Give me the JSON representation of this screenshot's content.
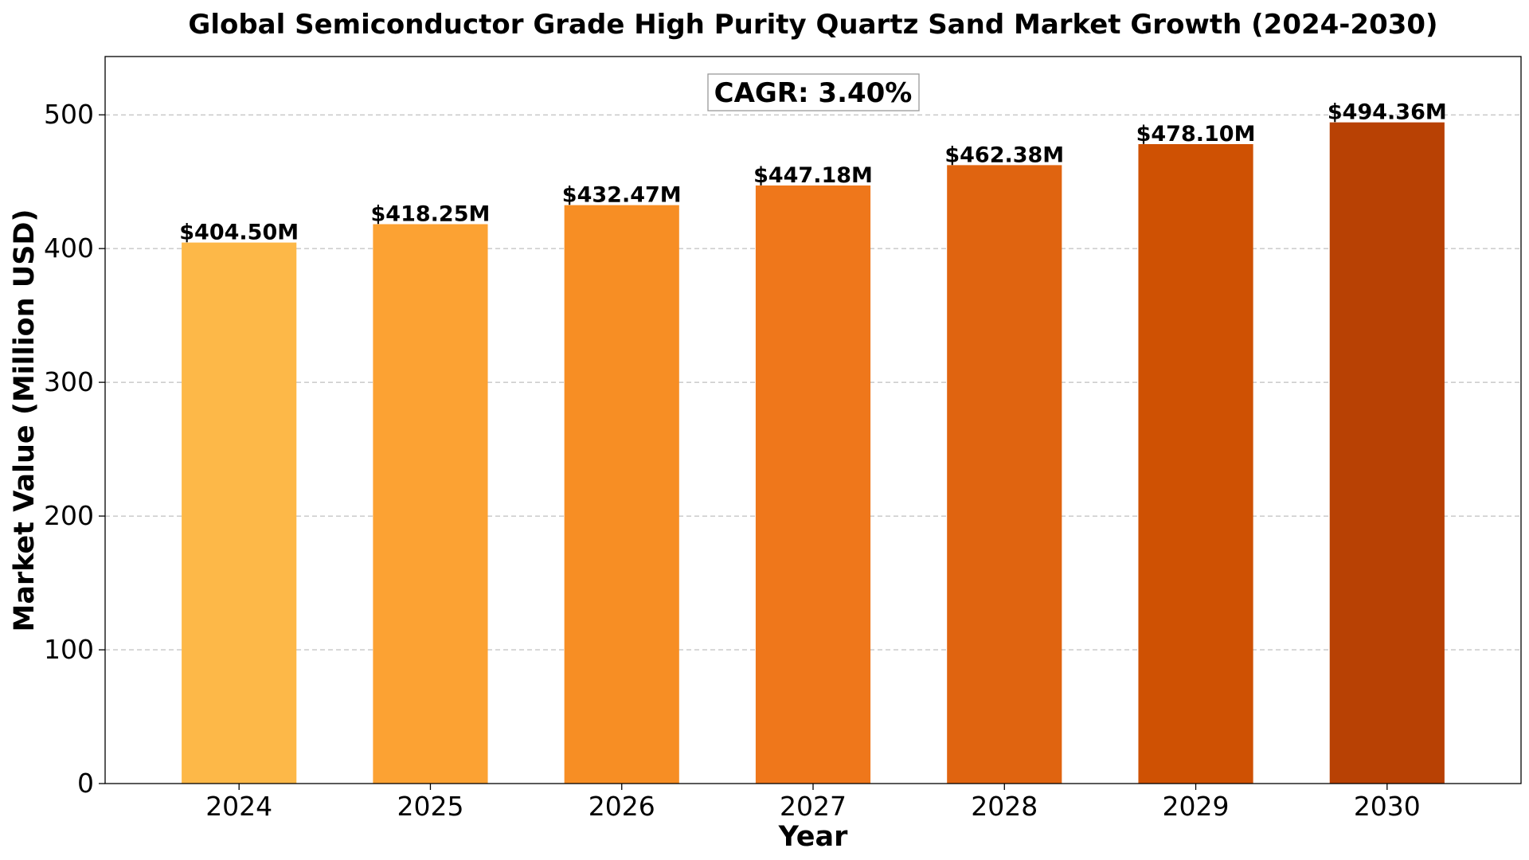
{
  "chart_data": {
    "type": "bar",
    "title": "Global Semiconductor Grade High Purity Quartz Sand Market Growth (2024-2030)",
    "xlabel": "Year",
    "ylabel": "Market Value (Million USD)",
    "categories": [
      "2024",
      "2025",
      "2026",
      "2027",
      "2028",
      "2029",
      "2030"
    ],
    "values": [
      404.5,
      418.25,
      432.47,
      447.18,
      462.38,
      478.1,
      494.36
    ],
    "data_labels": [
      "$404.50M",
      "$418.25M",
      "$432.47M",
      "$447.18M",
      "$462.38M",
      "$478.10M",
      "$494.36M"
    ],
    "bar_colors": [
      "#fdb848",
      "#fca233",
      "#f78e24",
      "#ef771b",
      "#e06410",
      "#cf5103",
      "#b84104"
    ],
    "ylim": [
      0,
      543.58
    ],
    "yticks": [
      0,
      100,
      200,
      300,
      400,
      500
    ],
    "grid": true,
    "annotation": "CAGR: 3.40%"
  }
}
